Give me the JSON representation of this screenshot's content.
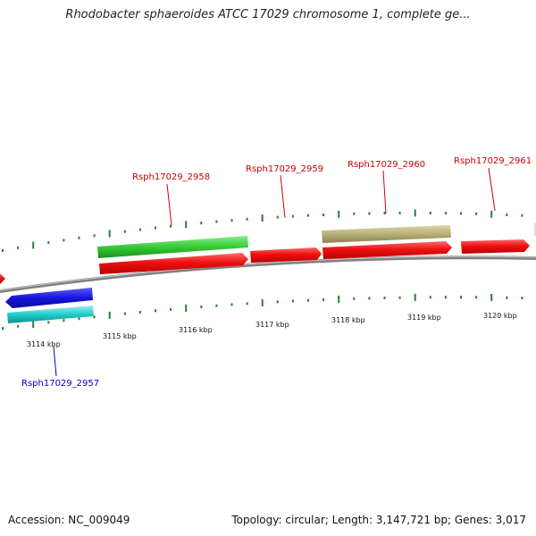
{
  "title": "Rhodobacter sphaeroides ATCC 17029 chromosome 1, complete ge...",
  "footer": {
    "accession": "Accession: NC_009049",
    "summary": "Topology: circular; Length: 3,147,721 bp; Genes: 3,017"
  },
  "ruler": {
    "tick_labels": [
      "3114 kbp",
      "3115 kbp",
      "3116 kbp",
      "3117 kbp",
      "3118 kbp",
      "3119 kbp",
      "3120 kbp"
    ]
  },
  "gene_labels": [
    {
      "name": "Rsph17029_2957",
      "color": "#0000cc"
    },
    {
      "name": "Rsph17029_2958",
      "color": "#cc0000"
    },
    {
      "name": "Rsph17029_2959",
      "color": "#cc0000"
    },
    {
      "name": "Rsph17029_2960",
      "color": "#cc0000"
    },
    {
      "name": "Rsph17029_2961",
      "color": "#cc0000"
    }
  ],
  "colors": {
    "backbone": "#808080",
    "tick": "#2e7d2e",
    "gene_forward": "#ee1111",
    "gene_reverse": "#1515dd",
    "cds_forward": "#33cc33",
    "cds_reverse": "#22cccc",
    "misc_feature": "#b8b078"
  }
}
